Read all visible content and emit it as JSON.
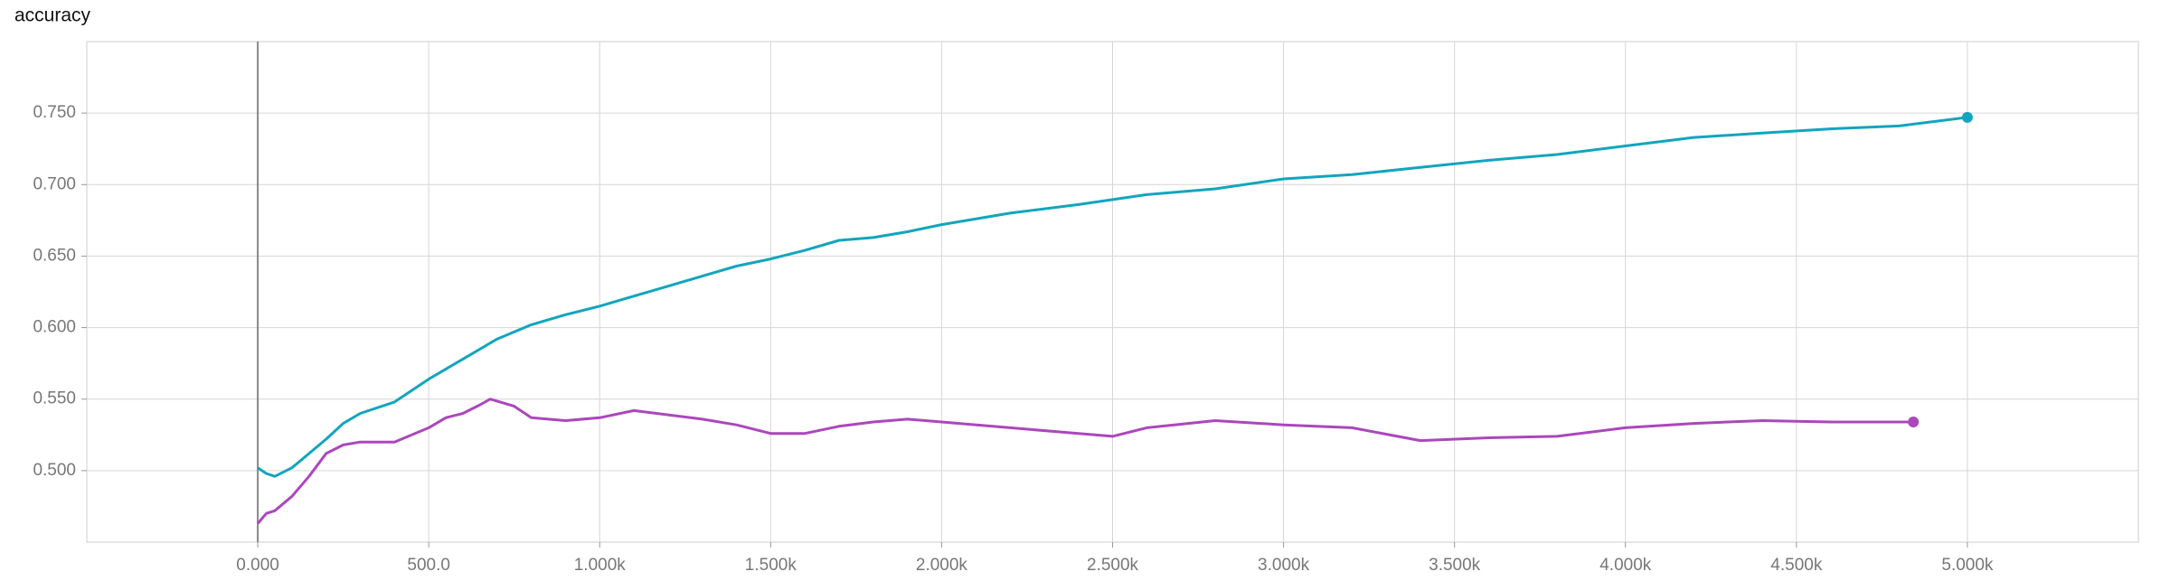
{
  "chart_data": {
    "type": "line",
    "title": "accuracy",
    "xlim": [
      -500,
      5500
    ],
    "ylim": [
      0.45,
      0.8
    ],
    "grid": true,
    "xticks": [
      {
        "value": 0,
        "label": "0.000"
      },
      {
        "value": 500,
        "label": "500.0"
      },
      {
        "value": 1000,
        "label": "1.000k"
      },
      {
        "value": 1500,
        "label": "1.500k"
      },
      {
        "value": 2000,
        "label": "2.000k"
      },
      {
        "value": 2500,
        "label": "2.500k"
      },
      {
        "value": 3000,
        "label": "3.000k"
      },
      {
        "value": 3500,
        "label": "3.500k"
      },
      {
        "value": 4000,
        "label": "4.000k"
      },
      {
        "value": 4500,
        "label": "4.500k"
      },
      {
        "value": 5000,
        "label": "5.000k"
      }
    ],
    "yticks": [
      {
        "value": 0.5,
        "label": "0.500"
      },
      {
        "value": 0.55,
        "label": "0.550"
      },
      {
        "value": 0.6,
        "label": "0.600"
      },
      {
        "value": 0.65,
        "label": "0.650"
      },
      {
        "value": 0.7,
        "label": "0.700"
      },
      {
        "value": 0.75,
        "label": "0.750"
      }
    ],
    "series": [
      {
        "color": "#12a5bd",
        "x": [
          0,
          25,
          50,
          100,
          150,
          200,
          250,
          300,
          400,
          500,
          600,
          700,
          800,
          900,
          1000,
          1100,
          1200,
          1300,
          1400,
          1500,
          1600,
          1700,
          1800,
          1900,
          2000,
          2200,
          2400,
          2600,
          2800,
          3000,
          3200,
          3400,
          3600,
          3800,
          4000,
          4200,
          4400,
          4600,
          4800,
          5000
        ],
        "values": [
          0.502,
          0.498,
          0.496,
          0.502,
          0.512,
          0.522,
          0.533,
          0.54,
          0.548,
          0.564,
          0.578,
          0.592,
          0.602,
          0.609,
          0.615,
          0.622,
          0.629,
          0.636,
          0.643,
          0.648,
          0.654,
          0.661,
          0.663,
          0.667,
          0.672,
          0.68,
          0.686,
          0.693,
          0.697,
          0.704,
          0.707,
          0.712,
          0.717,
          0.721,
          0.727,
          0.733,
          0.736,
          0.739,
          0.741,
          0.747
        ]
      },
      {
        "color": "#ab47bc",
        "x": [
          0,
          25,
          50,
          100,
          150,
          200,
          250,
          300,
          400,
          500,
          550,
          600,
          650,
          680,
          750,
          800,
          900,
          1000,
          1100,
          1200,
          1300,
          1400,
          1500,
          1600,
          1700,
          1800,
          1900,
          2000,
          2200,
          2400,
          2500,
          2600,
          2800,
          3000,
          3200,
          3400,
          3600,
          3800,
          4000,
          4200,
          4400,
          4600,
          4842
        ],
        "values": [
          0.463,
          0.47,
          0.472,
          0.482,
          0.496,
          0.512,
          0.518,
          0.52,
          0.52,
          0.53,
          0.537,
          0.54,
          0.546,
          0.55,
          0.545,
          0.537,
          0.535,
          0.537,
          0.542,
          0.539,
          0.536,
          0.532,
          0.526,
          0.526,
          0.531,
          0.534,
          0.536,
          0.534,
          0.53,
          0.526,
          0.524,
          0.53,
          0.535,
          0.532,
          0.53,
          0.521,
          0.523,
          0.524,
          0.53,
          0.533,
          0.535,
          0.534,
          0.534
        ]
      }
    ]
  }
}
